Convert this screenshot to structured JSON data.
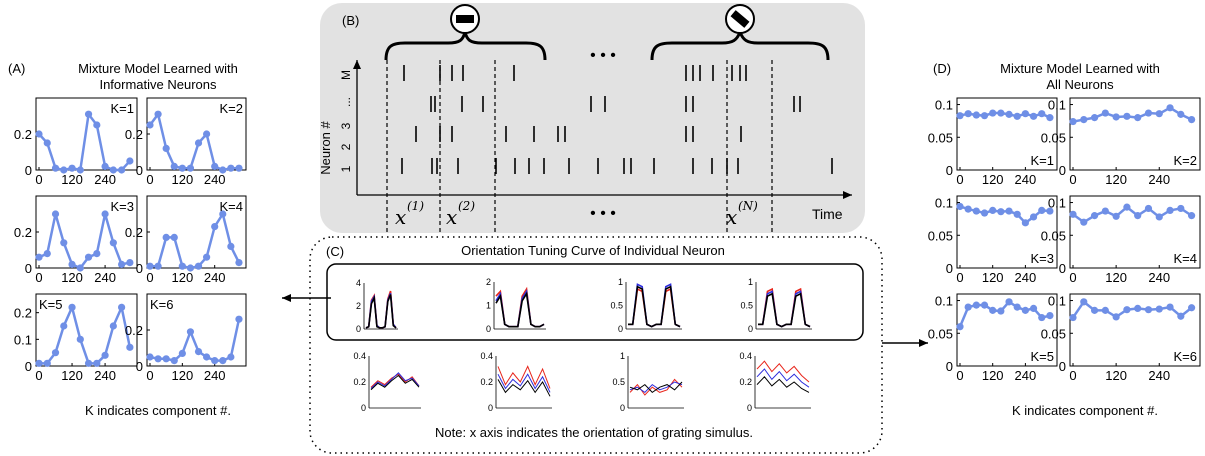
{
  "panel_a": {
    "letter": "(A)",
    "title_line1": "Mixture Model Learned with",
    "title_line2": "Informative Neurons",
    "footer": "K indicates component #."
  },
  "panel_b": {
    "letter": "(B)",
    "ylabel": "Neuron #",
    "neuron_labels": [
      "1",
      "2",
      "3",
      "...",
      "M"
    ],
    "xlabel": "Time",
    "samples": [
      "x",
      "x",
      "x"
    ],
    "sample_superscripts": [
      "(1)",
      "(2)",
      "(N)"
    ],
    "ellipsis": "• • •"
  },
  "panel_c": {
    "letter": "(C)",
    "title": "Orientation Tuning Curve of Individual Neuron",
    "note": "Note: x axis indicates the orientation of grating simulus."
  },
  "panel_d": {
    "letter": "(D)",
    "title_line1": "Mixture Model Learned with",
    "title_line2": "All Neurons",
    "footer": "K indicates component #."
  },
  "colors": {
    "series": "#6f8fe6",
    "panel_bg": "#e2e2e2",
    "red": "#e8261c",
    "blue": "#2d2ddc",
    "black": "#000000"
  },
  "chart_data": [
    {
      "type": "line",
      "panel": "A",
      "x": [
        0,
        30,
        60,
        90,
        120,
        150,
        180,
        210,
        240,
        270,
        300,
        330
      ],
      "xticks": [
        "0",
        "120",
        "240"
      ],
      "series": [
        {
          "name": "K=1",
          "yticks": [
            "0",
            "0.2"
          ],
          "ylim": [
            0,
            0.4
          ],
          "values": [
            0.2,
            0.15,
            0.01,
            0.0,
            0.01,
            0.0,
            0.31,
            0.25,
            0.02,
            0.0,
            0.0,
            0.05
          ]
        },
        {
          "name": "K=2",
          "yticks": [
            "0",
            "0.2"
          ],
          "ylim": [
            0,
            0.4
          ],
          "values": [
            0.25,
            0.31,
            0.12,
            0.02,
            0.01,
            0.01,
            0.15,
            0.2,
            0.02,
            0.0,
            0.01,
            0.01
          ]
        },
        {
          "name": "K=3",
          "yticks": [
            "0",
            "0.2"
          ],
          "ylim": [
            0,
            0.4
          ],
          "values": [
            0.06,
            0.08,
            0.3,
            0.14,
            0.02,
            0.0,
            0.06,
            0.08,
            0.3,
            0.14,
            0.02,
            0.03
          ]
        },
        {
          "name": "K=4",
          "yticks": [
            "0",
            "0.2"
          ],
          "ylim": [
            0,
            0.4
          ],
          "values": [
            0.01,
            0.01,
            0.17,
            0.17,
            0.01,
            0.0,
            0.01,
            0.06,
            0.23,
            0.3,
            0.12,
            0.03
          ]
        },
        {
          "name": "K=5",
          "yticks": [
            "0",
            "0.1",
            "0.2"
          ],
          "ylim": [
            0,
            0.27
          ],
          "values": [
            0.01,
            0.01,
            0.05,
            0.15,
            0.22,
            0.1,
            0.01,
            0.01,
            0.04,
            0.15,
            0.22,
            0.07
          ]
        },
        {
          "name": "K=6",
          "yticks": [
            "0",
            "0.2"
          ],
          "ylim": [
            0,
            0.4
          ],
          "values": [
            0.05,
            0.04,
            0.04,
            0.03,
            0.07,
            0.19,
            0.08,
            0.05,
            0.03,
            0.03,
            0.05,
            0.26
          ]
        }
      ]
    },
    {
      "type": "line",
      "panel": "C",
      "rows": [
        {
          "framed": true,
          "plots": [
            {
              "yticks": [
                "0",
                "2",
                "4"
              ],
              "ylim": [
                0,
                4
              ],
              "series": [
                {
                  "color": "red",
                  "values": [
                    0.1,
                    0.2,
                    2.5,
                    2.9,
                    0.3,
                    0.1,
                    0.1,
                    0.2,
                    2.6,
                    3.3,
                    0.4,
                    0.1
                  ]
                },
                {
                  "color": "blue",
                  "values": [
                    0.1,
                    0.2,
                    2.4,
                    2.8,
                    0.3,
                    0.1,
                    0.1,
                    0.2,
                    2.5,
                    3.1,
                    0.4,
                    0.1
                  ]
                },
                {
                  "color": "black",
                  "values": [
                    0.1,
                    0.2,
                    2.2,
                    2.7,
                    0.2,
                    0.1,
                    0.1,
                    0.2,
                    2.4,
                    3.0,
                    0.3,
                    0.1
                  ]
                }
              ]
            },
            {
              "yticks": [
                "0",
                "1",
                "2"
              ],
              "ylim": [
                0,
                2
              ],
              "series": [
                {
                  "color": "red",
                  "values": [
                    1.4,
                    1.6,
                    0.2,
                    0.1,
                    0.1,
                    0.1,
                    1.4,
                    1.7,
                    0.2,
                    0.1,
                    0.1,
                    0.2
                  ]
                },
                {
                  "color": "blue",
                  "values": [
                    1.2,
                    1.5,
                    0.2,
                    0.1,
                    0.1,
                    0.1,
                    1.3,
                    1.6,
                    0.2,
                    0.1,
                    0.1,
                    0.2
                  ]
                },
                {
                  "color": "black",
                  "values": [
                    1.1,
                    1.4,
                    0.2,
                    0.1,
                    0.1,
                    0.1,
                    1.2,
                    1.5,
                    0.2,
                    0.1,
                    0.1,
                    0.2
                  ]
                }
              ]
            },
            {
              "yticks": [
                "0",
                "0.5",
                "1"
              ],
              "ylim": [
                0,
                1
              ],
              "series": [
                {
                  "color": "red",
                  "values": [
                    0.1,
                    0.1,
                    0.85,
                    0.8,
                    0.1,
                    0.05,
                    0.1,
                    0.1,
                    0.8,
                    0.85,
                    0.1,
                    0.05
                  ]
                },
                {
                  "color": "blue",
                  "values": [
                    0.1,
                    0.1,
                    0.95,
                    0.9,
                    0.1,
                    0.05,
                    0.1,
                    0.1,
                    0.9,
                    0.95,
                    0.1,
                    0.05
                  ]
                },
                {
                  "color": "black",
                  "values": [
                    0.1,
                    0.1,
                    0.9,
                    0.85,
                    0.1,
                    0.05,
                    0.1,
                    0.1,
                    0.85,
                    0.9,
                    0.1,
                    0.05
                  ]
                }
              ]
            },
            {
              "yticks": [
                "0",
                "0.5",
                "1"
              ],
              "ylim": [
                0,
                1
              ],
              "series": [
                {
                  "color": "red",
                  "values": [
                    0.1,
                    0.1,
                    0.8,
                    0.85,
                    0.1,
                    0.05,
                    0.1,
                    0.1,
                    0.8,
                    0.85,
                    0.1,
                    0.05
                  ]
                },
                {
                  "color": "blue",
                  "values": [
                    0.1,
                    0.1,
                    0.75,
                    0.8,
                    0.1,
                    0.05,
                    0.1,
                    0.1,
                    0.75,
                    0.8,
                    0.1,
                    0.05
                  ]
                },
                {
                  "color": "black",
                  "values": [
                    0.1,
                    0.1,
                    0.7,
                    0.75,
                    0.1,
                    0.05,
                    0.1,
                    0.1,
                    0.7,
                    0.75,
                    0.1,
                    0.05
                  ]
                }
              ]
            }
          ]
        },
        {
          "framed": false,
          "plots": [
            {
              "yticks": [
                "0",
                "0.2",
                "0.4"
              ],
              "ylim": [
                0,
                0.4
              ],
              "series": [
                {
                  "color": "red",
                  "values": [
                    0.16,
                    0.21,
                    0.18,
                    0.23,
                    0.26,
                    0.2,
                    0.24,
                    0.17
                  ]
                },
                {
                  "color": "blue",
                  "values": [
                    0.15,
                    0.2,
                    0.17,
                    0.22,
                    0.27,
                    0.21,
                    0.23,
                    0.17
                  ]
                },
                {
                  "color": "black",
                  "values": [
                    0.14,
                    0.19,
                    0.16,
                    0.21,
                    0.25,
                    0.19,
                    0.22,
                    0.16
                  ]
                }
              ]
            },
            {
              "yticks": [
                "0",
                "0.2",
                "0.4"
              ],
              "ylim": [
                0,
                0.4
              ],
              "series": [
                {
                  "color": "red",
                  "values": [
                    0.32,
                    0.18,
                    0.27,
                    0.2,
                    0.32,
                    0.18,
                    0.3,
                    0.15
                  ]
                },
                {
                  "color": "blue",
                  "values": [
                    0.26,
                    0.15,
                    0.22,
                    0.17,
                    0.26,
                    0.15,
                    0.24,
                    0.12
                  ]
                },
                {
                  "color": "black",
                  "values": [
                    0.22,
                    0.12,
                    0.18,
                    0.14,
                    0.21,
                    0.12,
                    0.2,
                    0.09
                  ]
                }
              ]
            },
            {
              "yticks": [
                "0",
                "0.5",
                "1"
              ],
              "ylim": [
                0,
                1
              ],
              "series": [
                {
                  "color": "red",
                  "values": [
                    0.3,
                    0.45,
                    0.25,
                    0.4,
                    0.3,
                    0.35,
                    0.55,
                    0.4
                  ]
                },
                {
                  "color": "blue",
                  "values": [
                    0.35,
                    0.4,
                    0.3,
                    0.45,
                    0.35,
                    0.4,
                    0.5,
                    0.45
                  ]
                },
                {
                  "color": "black",
                  "values": [
                    0.4,
                    0.35,
                    0.45,
                    0.3,
                    0.4,
                    0.45,
                    0.35,
                    0.5
                  ]
                }
              ]
            },
            {
              "yticks": [
                "0",
                "0.2",
                "0.4"
              ],
              "ylim": [
                0,
                0.4
              ],
              "series": [
                {
                  "color": "red",
                  "values": [
                    0.3,
                    0.36,
                    0.28,
                    0.34,
                    0.27,
                    0.32,
                    0.25,
                    0.2
                  ]
                },
                {
                  "color": "blue",
                  "values": [
                    0.24,
                    0.3,
                    0.22,
                    0.28,
                    0.21,
                    0.26,
                    0.2,
                    0.16
                  ]
                },
                {
                  "color": "black",
                  "values": [
                    0.18,
                    0.24,
                    0.17,
                    0.22,
                    0.16,
                    0.2,
                    0.15,
                    0.12
                  ]
                }
              ]
            }
          ]
        }
      ]
    },
    {
      "type": "line",
      "panel": "D",
      "x": [
        0,
        30,
        60,
        90,
        120,
        150,
        180,
        210,
        240,
        270,
        300,
        330
      ],
      "xticks": [
        "0",
        "120",
        "240"
      ],
      "yticks": [
        "0",
        "0.05",
        "0.1"
      ],
      "ylim": [
        0,
        0.11
      ],
      "series": [
        {
          "name": "K=1",
          "values": [
            0.083,
            0.086,
            0.084,
            0.083,
            0.087,
            0.087,
            0.085,
            0.082,
            0.086,
            0.082,
            0.086,
            0.08
          ]
        },
        {
          "name": "K=2",
          "values": [
            0.074,
            0.077,
            0.08,
            0.087,
            0.081,
            0.082,
            0.08,
            0.087,
            0.086,
            0.095,
            0.085,
            0.077
          ]
        },
        {
          "name": "K=3",
          "values": [
            0.094,
            0.09,
            0.087,
            0.084,
            0.088,
            0.086,
            0.087,
            0.082,
            0.069,
            0.078,
            0.088,
            0.087
          ]
        },
        {
          "name": "K=4",
          "values": [
            0.082,
            0.07,
            0.08,
            0.087,
            0.079,
            0.093,
            0.08,
            0.091,
            0.078,
            0.088,
            0.091,
            0.08
          ]
        },
        {
          "name": "K=5",
          "values": [
            0.06,
            0.09,
            0.093,
            0.093,
            0.085,
            0.084,
            0.098,
            0.09,
            0.085,
            0.088,
            0.074,
            0.077
          ]
        },
        {
          "name": "K=6",
          "values": [
            0.074,
            0.098,
            0.085,
            0.085,
            0.075,
            0.086,
            0.088,
            0.086,
            0.087,
            0.09,
            0.076,
            0.089
          ]
        }
      ]
    }
  ]
}
